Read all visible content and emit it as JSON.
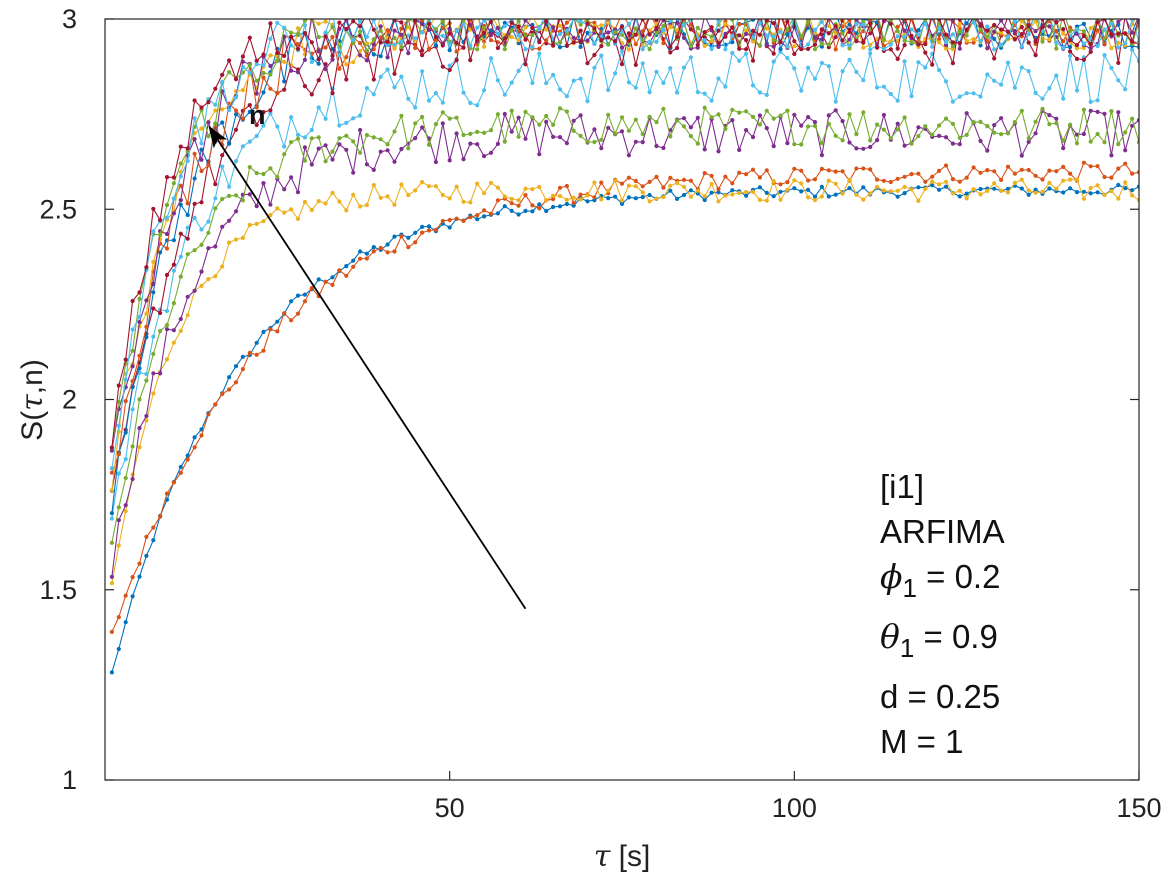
{
  "chart_data": {
    "type": "line",
    "xlabel_symbol": "τ",
    "xlabel_unit": "[s]",
    "ylabel_pre": "S(",
    "ylabel_symbol": "τ",
    "ylabel_post": ",n)",
    "xlim": [
      0,
      150
    ],
    "ylim": [
      1,
      3
    ],
    "x_ticks": [
      50,
      100,
      150
    ],
    "y_ticks": [
      1,
      1.5,
      2,
      2.5,
      3
    ],
    "y_tick_labels": [
      "1",
      "1.5",
      "2",
      "2.5",
      "3"
    ],
    "x_tick_labels": [
      "50",
      "100",
      "150"
    ],
    "grid": false,
    "x_values": "tau = 1, 2, ..., 150",
    "series": [
      {
        "color": "#0072BD",
        "start": 1.28,
        "end": 2.55,
        "curve": 0.055,
        "noise": 0.015
      },
      {
        "color": "#D95319",
        "start": 1.38,
        "end": 2.6,
        "curve": 0.045,
        "noise": 0.025
      },
      {
        "color": "#EDB120",
        "start": 1.5,
        "end": 2.55,
        "curve": 0.11,
        "noise": 0.03
      },
      {
        "color": "#7E2F8E",
        "start": 1.56,
        "end": 2.7,
        "curve": 0.09,
        "noise": 0.06
      },
      {
        "color": "#77AC30",
        "start": 1.6,
        "end": 2.72,
        "curve": 0.1,
        "noise": 0.05
      },
      {
        "color": "#4DBEEE",
        "start": 1.68,
        "end": 2.85,
        "curve": 0.09,
        "noise": 0.07
      },
      {
        "color": "#A2142F",
        "start": 1.72,
        "end": 2.95,
        "curve": 0.085,
        "noise": 0.07
      },
      {
        "color": "#0072BD",
        "start": 1.75,
        "end": 3.0,
        "curve": 0.09,
        "noise": 0.08
      },
      {
        "color": "#D95319",
        "start": 1.78,
        "end": 3.0,
        "curve": 0.095,
        "noise": 0.08
      },
      {
        "color": "#EDB120",
        "start": 1.8,
        "end": 3.0,
        "curve": 0.1,
        "noise": 0.08
      },
      {
        "color": "#7E2F8E",
        "start": 1.82,
        "end": 3.0,
        "curve": 0.1,
        "noise": 0.08
      },
      {
        "color": "#77AC30",
        "start": 1.83,
        "end": 3.0,
        "curve": 0.11,
        "noise": 0.08
      },
      {
        "color": "#4DBEEE",
        "start": 1.85,
        "end": 3.0,
        "curve": 0.11,
        "noise": 0.08
      },
      {
        "color": "#A2142F",
        "start": 1.87,
        "end": 3.0,
        "curve": 0.12,
        "noise": 0.08
      }
    ],
    "arrow": {
      "label": "n",
      "from": [
        61,
        1.45
      ],
      "to": [
        15,
        2.72
      ]
    },
    "annotation": {
      "line1": "[i1]",
      "line2": "ARFIMA",
      "phi_sym": "ϕ",
      "phi_sub": "1",
      "phi_val": " = 0.2",
      "theta_sym": "θ",
      "theta_sub": "1",
      "theta_val": " = 0.9",
      "line5": "d = 0.25",
      "line6": "M = 1"
    }
  }
}
